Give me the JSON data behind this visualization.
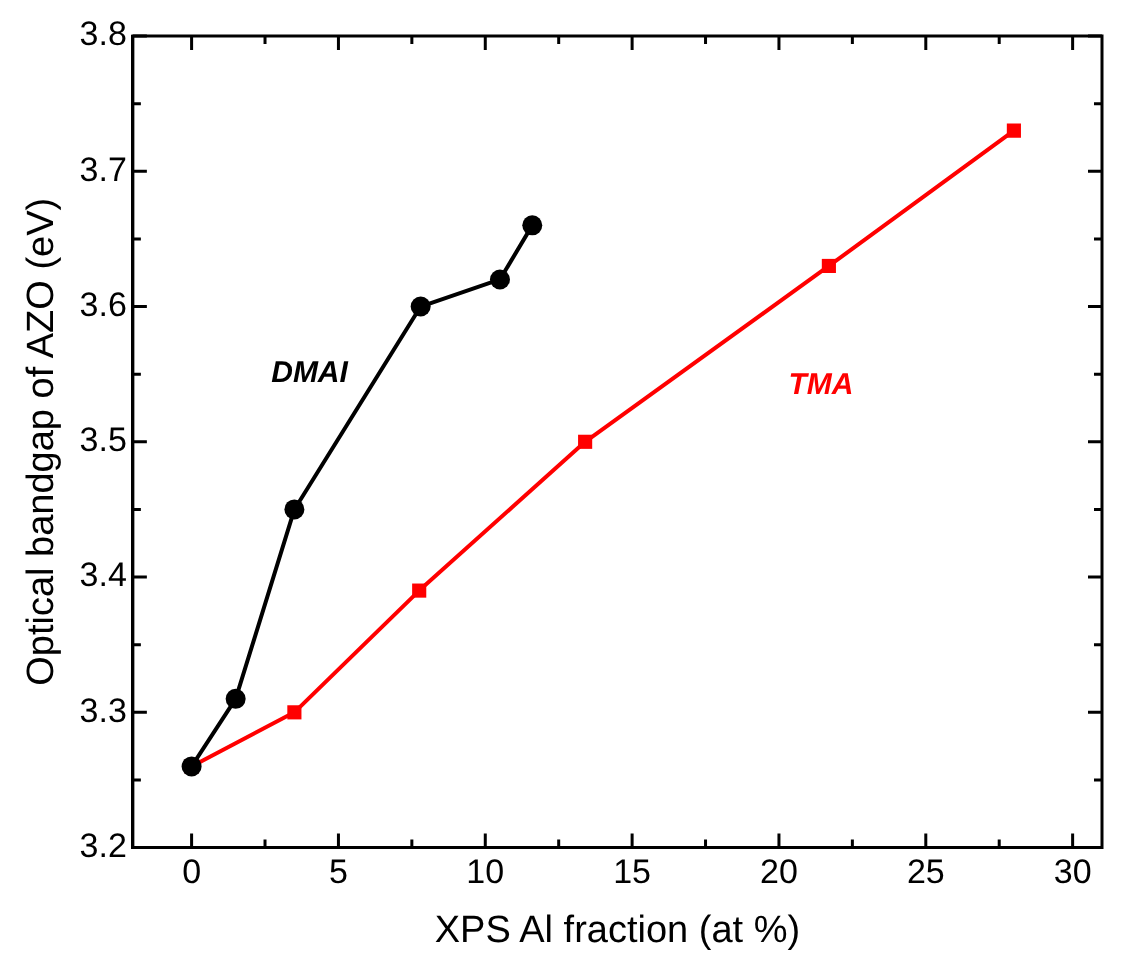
{
  "chart_data": {
    "type": "line",
    "xlabel": "XPS Al fraction (at %)",
    "ylabel": "Optical bandgap of AZO (eV)",
    "xlim": [
      -2,
      31
    ],
    "xticks": [
      0,
      {
        "value": 2.5,
        "label": null
      },
      5,
      {
        "value": 7.5,
        "label": null
      },
      10,
      {
        "value": 12.5,
        "label": null
      },
      15,
      {
        "value": 17.5,
        "label": null
      },
      20,
      {
        "value": 22.5,
        "label": null
      },
      25,
      {
        "value": 27.5,
        "label": null
      },
      30
    ],
    "ylim": [
      3.2,
      3.8
    ],
    "yticks": [
      3.2,
      {
        "value": 3.25,
        "label": null
      },
      3.3,
      {
        "value": 3.35,
        "label": null
      },
      3.4,
      {
        "value": 3.45,
        "label": null
      },
      3.5,
      {
        "value": 3.55,
        "label": null
      },
      3.6,
      {
        "value": 3.65,
        "label": null
      },
      3.7,
      {
        "value": 3.75,
        "label": null
      },
      3.8
    ],
    "grid": false,
    "legend": false,
    "series": [
      {
        "name": "DMAI",
        "color": "#000000",
        "marker": "circle",
        "x": [
          0,
          1.5,
          3.5,
          7.8,
          10.5,
          11.6
        ],
        "values": [
          3.26,
          3.31,
          3.45,
          3.6,
          3.62,
          3.66
        ]
      },
      {
        "name": "TMA",
        "color": "#ff0000",
        "marker": "square",
        "x": [
          0,
          3.5,
          7.75,
          13.4,
          21.7,
          28
        ],
        "values": [
          3.26,
          3.3,
          3.39,
          3.5,
          3.63,
          3.73
        ]
      }
    ]
  }
}
